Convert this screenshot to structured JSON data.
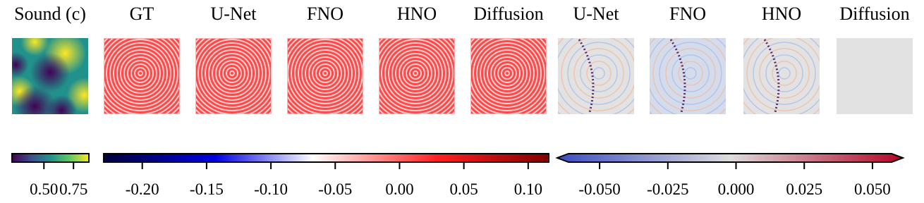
{
  "panels": [
    {
      "title": "Sound (c)"
    },
    {
      "title": "GT"
    },
    {
      "title": "U-Net"
    },
    {
      "title": "FNO"
    },
    {
      "title": "HNO"
    },
    {
      "title": "Diffusion"
    },
    {
      "title": "U-Net"
    },
    {
      "title": "FNO"
    },
    {
      "title": "HNO"
    },
    {
      "title": "Diffusion"
    }
  ],
  "colorbars": [
    {
      "lim": [
        0.23,
        0.88
      ],
      "ticks": [
        {
          "value": 0.5,
          "label": "0.50"
        },
        {
          "value": 0.75,
          "label": "0.75"
        }
      ]
    },
    {
      "lim": [
        -0.23,
        0.116
      ],
      "ticks": [
        {
          "value": -0.2,
          "label": "-0.20"
        },
        {
          "value": -0.15,
          "label": "-0.15"
        },
        {
          "value": -0.1,
          "label": "-0.10"
        },
        {
          "value": -0.05,
          "label": "-0.05"
        },
        {
          "value": 0,
          "label": "0.00"
        },
        {
          "value": 0.05,
          "label": "0.05"
        },
        {
          "value": 0.1,
          "label": "0.10"
        }
      ]
    },
    {
      "lim": [
        -0.0614,
        0.057
      ],
      "ticks": [
        {
          "value": -0.05,
          "label": "-0.050"
        },
        {
          "value": -0.025,
          "label": "-0.025"
        },
        {
          "value": 0,
          "label": "0.000"
        },
        {
          "value": 0.025,
          "label": "0.025"
        },
        {
          "value": 0.05,
          "label": "0.050"
        }
      ]
    }
  ]
}
